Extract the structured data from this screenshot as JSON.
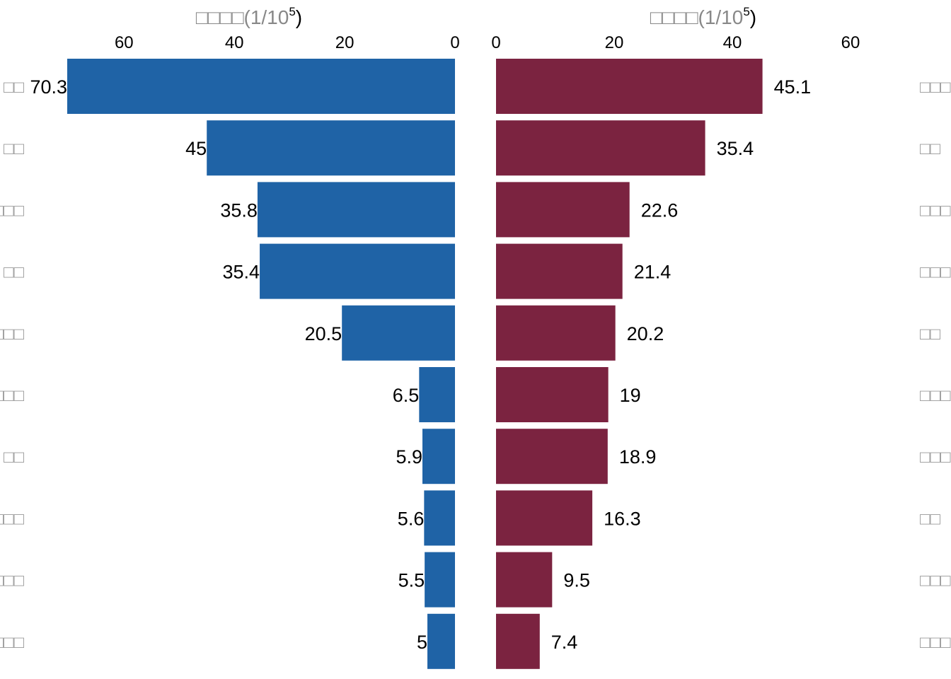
{
  "chart_data": [
    {
      "type": "bar",
      "orientation": "horizontal",
      "direction": "reversed",
      "axis_title": "□□□□(1/10",
      "axis_title_sup": "5",
      "axis_title_end": ")",
      "xlim": [
        0,
        70.3
      ],
      "ticks": [
        0,
        20,
        40,
        60
      ],
      "color": "#1f63a6",
      "categories": [
        "□□",
        "□□",
        "□□□",
        "□□",
        "□□□",
        "□□□",
        "□□",
        "□□□",
        "□□□",
        "□□□"
      ],
      "values": [
        70.3,
        45,
        35.8,
        35.4,
        20.5,
        6.5,
        5.9,
        5.6,
        5.5,
        5
      ],
      "value_labels": [
        "70.3",
        "45",
        "35.8",
        "35.4",
        "20.5",
        "6.5",
        "5.9",
        "5.6",
        "5.5",
        "5"
      ]
    },
    {
      "type": "bar",
      "orientation": "horizontal",
      "direction": "normal",
      "axis_title": "□□□□(1/10",
      "axis_title_sup": "5",
      "axis_title_end": ")",
      "xlim": [
        0,
        60
      ],
      "ticks": [
        0,
        20,
        40,
        60
      ],
      "color": "#7b2340",
      "categories": [
        "□□□",
        "□□",
        "□□□",
        "□□□",
        "□□",
        "□□□",
        "□□□",
        "□□",
        "□□□",
        "□□□"
      ],
      "values": [
        45.1,
        35.4,
        22.6,
        21.4,
        20.2,
        19,
        18.9,
        16.3,
        9.5,
        7.4
      ],
      "value_labels": [
        "45.1",
        "35.4",
        "22.6",
        "21.4",
        "20.2",
        "19",
        "18.9",
        "16.3",
        "9.5",
        "7.4"
      ]
    }
  ]
}
